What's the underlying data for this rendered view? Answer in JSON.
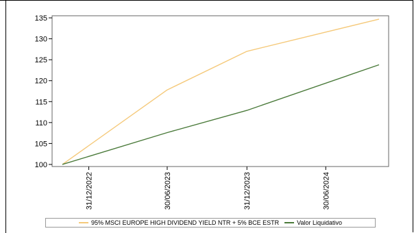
{
  "chart_data": {
    "type": "line",
    "title": "",
    "xlabel": "",
    "ylabel": "",
    "ylim": [
      99.5,
      135.5
    ],
    "yticks": [
      100,
      105,
      110,
      115,
      120,
      125,
      130,
      135
    ],
    "xlim": [
      "2022-10-31",
      "2024-10-31"
    ],
    "xticks": [
      {
        "date": "2022-12-31",
        "label": "31/12/2022"
      },
      {
        "date": "2023-06-30",
        "label": "30/06/2023"
      },
      {
        "date": "2023-12-31",
        "label": "31/12/2023"
      },
      {
        "date": "2024-06-30",
        "label": "30/06/2024"
      }
    ],
    "grid": false,
    "legend_position": "bottom",
    "series": [
      {
        "name": "95% MSCI EUROPE HIGH DIVIDEND YIELD NTR + 5% BCE ESTR",
        "color": "#f5c97a",
        "points": [
          {
            "x": "2022-10-31",
            "y": 100.0
          },
          {
            "x": "2023-06-30",
            "y": 117.8
          },
          {
            "x": "2023-12-31",
            "y": 127.0
          },
          {
            "x": "2024-10-31",
            "y": 134.7
          }
        ]
      },
      {
        "name": "Valor Liquidativo",
        "color": "#4a7a3a",
        "points": [
          {
            "x": "2022-10-31",
            "y": 100.0
          },
          {
            "x": "2023-06-30",
            "y": 107.6
          },
          {
            "x": "2023-12-31",
            "y": 112.9
          },
          {
            "x": "2024-10-31",
            "y": 123.8
          }
        ]
      }
    ]
  }
}
